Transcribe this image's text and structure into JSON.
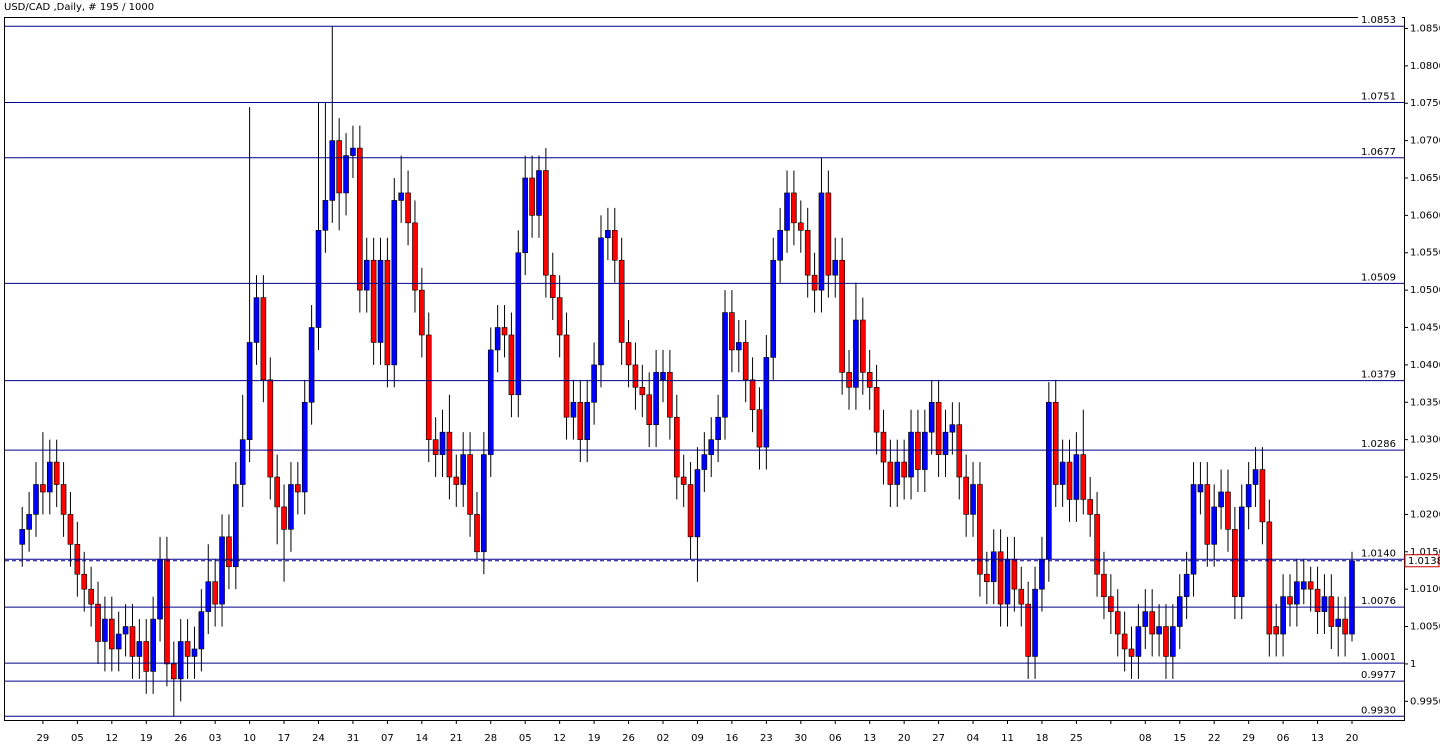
{
  "chart_data": {
    "type": "candlestick",
    "title": "USD/CAD ,Daily, # 195 / 1000",
    "up_color": "#0000ff",
    "down_color": "#ff0000",
    "level_color": "#00008b",
    "ylim": [
      0.9925,
      1.0864
    ],
    "yticks": [
      {
        "value": 0.995,
        "label": "0.9950"
      },
      1.0,
      {
        "value": 1.005,
        "label": "1.0050"
      },
      {
        "value": 1.01,
        "label": "1.0100"
      },
      {
        "value": 1.015,
        "label": "1.0150"
      },
      {
        "value": 1.02,
        "label": "1.0200"
      },
      {
        "value": 1.025,
        "label": "1.0250"
      },
      {
        "value": 1.03,
        "label": "1.0300"
      },
      {
        "value": 1.035,
        "label": "1.0350"
      },
      {
        "value": 1.04,
        "label": "1.0400"
      },
      {
        "value": 1.045,
        "label": "1.0450"
      },
      {
        "value": 1.05,
        "label": "1.0500"
      },
      {
        "value": 1.055,
        "label": "1.0550"
      },
      {
        "value": 1.06,
        "label": "1.0600"
      },
      {
        "value": 1.065,
        "label": "1.0650"
      },
      {
        "value": 1.07,
        "label": "1.0700"
      },
      {
        "value": 1.075,
        "label": "1.0750"
      },
      {
        "value": 1.08,
        "label": "1.0800"
      },
      {
        "value": 1.085,
        "label": "1.0850"
      }
    ],
    "xticks": [
      "29",
      "05",
      "12",
      "19",
      "26",
      "03",
      "10",
      "17",
      "24",
      "31",
      "07",
      "14",
      "21",
      "28",
      "05",
      "12",
      "19",
      "26",
      "02",
      "09",
      "16",
      "23",
      "30",
      "06",
      "13",
      "20",
      "27",
      "04",
      "11",
      "18",
      "25",
      null,
      "08",
      "15",
      "22",
      "29",
      "06",
      "13",
      "20"
    ],
    "levels": [
      1.0853,
      1.0751,
      1.0677,
      1.0509,
      1.0379,
      1.0286,
      {
        "value": 1.014,
        "label": "1.0140"
      },
      1.0076,
      1.0001,
      0.9977,
      {
        "value": 0.993,
        "label": "0.9930"
      }
    ],
    "bid": 1.0138,
    "candles": [
      [
        1.016,
        1.021,
        1.013,
        1.018
      ],
      [
        1.018,
        1.023,
        1.015,
        1.02
      ],
      [
        1.02,
        1.027,
        1.017,
        1.024
      ],
      [
        1.024,
        1.031,
        1.02,
        1.023
      ],
      [
        1.023,
        1.03,
        1.02,
        1.027
      ],
      [
        1.027,
        1.03,
        1.021,
        1.024
      ],
      [
        1.024,
        1.027,
        1.017,
        1.02
      ],
      [
        1.02,
        1.023,
        1.013,
        1.016
      ],
      [
        1.016,
        1.019,
        1.009,
        1.012
      ],
      [
        1.012,
        1.015,
        1.007,
        1.01
      ],
      [
        1.01,
        1.013,
        1.005,
        1.008
      ],
      [
        1.008,
        1.011,
        1.0,
        1.003
      ],
      [
        1.003,
        1.009,
        0.999,
        1.006
      ],
      [
        1.006,
        1.009,
        0.999,
        1.002
      ],
      [
        1.002,
        1.007,
        0.999,
        1.004
      ],
      [
        1.004,
        1.008,
        1.001,
        1.005
      ],
      [
        1.005,
        1.008,
        0.998,
        1.001
      ],
      [
        1.001,
        1.006,
        0.998,
        1.003
      ],
      [
        1.003,
        1.006,
        0.996,
        0.999
      ],
      [
        0.999,
        1.009,
        0.996,
        1.006
      ],
      [
        1.006,
        1.017,
        1.003,
        1.014
      ],
      [
        1.014,
        1.017,
        0.997,
        1.0
      ],
      [
        1.0,
        1.003,
        0.993,
        0.998
      ],
      [
        0.998,
        1.006,
        0.995,
        1.003
      ],
      [
        1.003,
        1.006,
        0.998,
        1.001
      ],
      [
        1.001,
        1.005,
        0.998,
        1.002
      ],
      [
        1.002,
        1.01,
        0.999,
        1.007
      ],
      [
        1.007,
        1.016,
        1.004,
        1.011
      ],
      [
        1.011,
        1.014,
        1.005,
        1.008
      ],
      [
        1.008,
        1.02,
        1.005,
        1.017
      ],
      [
        1.017,
        1.02,
        1.01,
        1.013
      ],
      [
        1.013,
        1.027,
        1.01,
        1.024
      ],
      [
        1.024,
        1.036,
        1.021,
        1.03
      ],
      [
        1.03,
        1.0745,
        1.027,
        1.043
      ],
      [
        1.043,
        1.052,
        1.04,
        1.049
      ],
      [
        1.049,
        1.052,
        1.035,
        1.038
      ],
      [
        1.038,
        1.041,
        1.022,
        1.025
      ],
      [
        1.025,
        1.028,
        1.016,
        1.021
      ],
      [
        1.021,
        1.024,
        1.011,
        1.018
      ],
      [
        1.018,
        1.027,
        1.015,
        1.024
      ],
      [
        1.024,
        1.027,
        1.02,
        1.023
      ],
      [
        1.023,
        1.038,
        1.02,
        1.035
      ],
      [
        1.035,
        1.048,
        1.032,
        1.045
      ],
      [
        1.045,
        1.0751,
        1.042,
        1.058
      ],
      [
        1.058,
        1.0751,
        1.055,
        1.062
      ],
      [
        1.062,
        1.0853,
        1.059,
        1.07
      ],
      [
        1.07,
        1.073,
        1.058,
        1.063
      ],
      [
        1.063,
        1.071,
        1.06,
        1.068
      ],
      [
        1.068,
        1.072,
        1.065,
        1.069
      ],
      [
        1.069,
        1.072,
        1.047,
        1.05
      ],
      [
        1.05,
        1.057,
        1.047,
        1.054
      ],
      [
        1.054,
        1.057,
        1.04,
        1.043
      ],
      [
        1.043,
        1.057,
        1.04,
        1.054
      ],
      [
        1.054,
        1.057,
        1.037,
        1.04
      ],
      [
        1.04,
        1.065,
        1.037,
        1.062
      ],
      [
        1.062,
        1.068,
        1.059,
        1.063
      ],
      [
        1.063,
        1.066,
        1.056,
        1.059
      ],
      [
        1.059,
        1.062,
        1.047,
        1.05
      ],
      [
        1.05,
        1.053,
        1.041,
        1.044
      ],
      [
        1.044,
        1.047,
        1.027,
        1.03
      ],
      [
        1.03,
        1.033,
        1.025,
        1.028
      ],
      [
        1.028,
        1.034,
        1.025,
        1.031
      ],
      [
        1.031,
        1.036,
        1.022,
        1.025
      ],
      [
        1.025,
        1.028,
        1.021,
        1.024
      ],
      [
        1.024,
        1.031,
        1.021,
        1.028
      ],
      [
        1.028,
        1.031,
        1.017,
        1.02
      ],
      [
        1.02,
        1.023,
        1.014,
        1.015
      ],
      [
        1.015,
        1.031,
        1.012,
        1.028
      ],
      [
        1.028,
        1.045,
        1.025,
        1.042
      ],
      [
        1.042,
        1.048,
        1.039,
        1.045
      ],
      [
        1.045,
        1.048,
        1.041,
        1.044
      ],
      [
        1.044,
        1.047,
        1.033,
        1.036
      ],
      [
        1.036,
        1.058,
        1.033,
        1.055
      ],
      [
        1.055,
        1.068,
        1.052,
        1.065
      ],
      [
        1.065,
        1.068,
        1.057,
        1.06
      ],
      [
        1.06,
        1.068,
        1.057,
        1.066
      ],
      [
        1.066,
        1.069,
        1.049,
        1.052
      ],
      [
        1.052,
        1.055,
        1.046,
        1.049
      ],
      [
        1.049,
        1.052,
        1.041,
        1.044
      ],
      [
        1.044,
        1.047,
        1.03,
        1.033
      ],
      [
        1.033,
        1.038,
        1.03,
        1.035
      ],
      [
        1.035,
        1.038,
        1.027,
        1.03
      ],
      [
        1.03,
        1.038,
        1.027,
        1.035
      ],
      [
        1.035,
        1.043,
        1.032,
        1.04
      ],
      [
        1.04,
        1.06,
        1.037,
        1.057
      ],
      [
        1.057,
        1.061,
        1.054,
        1.058
      ],
      [
        1.058,
        1.061,
        1.051,
        1.054
      ],
      [
        1.054,
        1.057,
        1.04,
        1.043
      ],
      [
        1.043,
        1.046,
        1.037,
        1.04
      ],
      [
        1.04,
        1.043,
        1.034,
        1.037
      ],
      [
        1.037,
        1.04,
        1.033,
        1.036
      ],
      [
        1.036,
        1.039,
        1.029,
        1.032
      ],
      [
        1.032,
        1.042,
        1.029,
        1.039
      ],
      [
        1.038,
        1.042,
        1.035,
        1.039
      ],
      [
        1.039,
        1.042,
        1.03,
        1.033
      ],
      [
        1.033,
        1.036,
        1.022,
        1.025
      ],
      [
        1.025,
        1.028,
        1.021,
        1.024
      ],
      [
        1.024,
        1.027,
        1.014,
        1.017
      ],
      [
        1.017,
        1.029,
        1.011,
        1.026
      ],
      [
        1.026,
        1.031,
        1.023,
        1.028
      ],
      [
        1.028,
        1.033,
        1.025,
        1.03
      ],
      [
        1.03,
        1.036,
        1.027,
        1.033
      ],
      [
        1.033,
        1.05,
        1.03,
        1.047
      ],
      [
        1.047,
        1.05,
        1.039,
        1.042
      ],
      [
        1.042,
        1.046,
        1.039,
        1.043
      ],
      [
        1.043,
        1.046,
        1.035,
        1.038
      ],
      [
        1.038,
        1.041,
        1.031,
        1.034
      ],
      [
        1.034,
        1.037,
        1.026,
        1.029
      ],
      [
        1.029,
        1.044,
        1.026,
        1.041
      ],
      [
        1.041,
        1.057,
        1.038,
        1.054
      ],
      [
        1.054,
        1.061,
        1.051,
        1.058
      ],
      [
        1.058,
        1.066,
        1.055,
        1.063
      ],
      [
        1.063,
        1.066,
        1.056,
        1.059
      ],
      [
        1.059,
        1.062,
        1.055,
        1.058
      ],
      [
        1.058,
        1.061,
        1.049,
        1.052
      ],
      [
        1.052,
        1.055,
        1.047,
        1.05
      ],
      [
        1.05,
        1.0677,
        1.047,
        1.063
      ],
      [
        1.063,
        1.066,
        1.049,
        1.052
      ],
      [
        1.052,
        1.057,
        1.049,
        1.054
      ],
      [
        1.054,
        1.057,
        1.036,
        1.039
      ],
      [
        1.039,
        1.042,
        1.034,
        1.037
      ],
      [
        1.037,
        1.051,
        1.034,
        1.046
      ],
      [
        1.046,
        1.049,
        1.036,
        1.039
      ],
      [
        1.039,
        1.042,
        1.034,
        1.037
      ],
      [
        1.037,
        1.04,
        1.028,
        1.031
      ],
      [
        1.031,
        1.034,
        1.024,
        1.027
      ],
      [
        1.027,
        1.03,
        1.021,
        1.024
      ],
      [
        1.024,
        1.03,
        1.021,
        1.027
      ],
      [
        1.027,
        1.03,
        1.022,
        1.025
      ],
      [
        1.025,
        1.034,
        1.022,
        1.031
      ],
      [
        1.031,
        1.034,
        1.023,
        1.026
      ],
      [
        1.026,
        1.034,
        1.023,
        1.031
      ],
      [
        1.031,
        1.038,
        1.028,
        1.035
      ],
      [
        1.035,
        1.038,
        1.025,
        1.028
      ],
      [
        1.028,
        1.034,
        1.025,
        1.031
      ],
      [
        1.031,
        1.035,
        1.028,
        1.032
      ],
      [
        1.032,
        1.035,
        1.022,
        1.025
      ],
      [
        1.025,
        1.028,
        1.017,
        1.02
      ],
      [
        1.02,
        1.027,
        1.017,
        1.024
      ],
      [
        1.024,
        1.027,
        1.009,
        1.012
      ],
      [
        1.012,
        1.015,
        1.008,
        1.011
      ],
      [
        1.011,
        1.018,
        1.008,
        1.015
      ],
      [
        1.015,
        1.018,
        1.005,
        1.008
      ],
      [
        1.008,
        1.017,
        1.005,
        1.014
      ],
      [
        1.014,
        1.017,
        1.007,
        1.01
      ],
      [
        1.01,
        1.013,
        1.005,
        1.008
      ],
      [
        1.008,
        1.011,
        0.998,
        1.001
      ],
      [
        1.001,
        1.013,
        0.998,
        1.01
      ],
      [
        1.01,
        1.017,
        1.007,
        1.014
      ],
      [
        1.014,
        1.0377,
        1.011,
        1.035
      ],
      [
        1.035,
        1.038,
        1.021,
        1.024
      ],
      [
        1.024,
        1.03,
        1.021,
        1.027
      ],
      [
        1.027,
        1.03,
        1.019,
        1.022
      ],
      [
        1.022,
        1.031,
        1.019,
        1.028
      ],
      [
        1.028,
        1.034,
        1.02,
        1.022
      ],
      [
        1.022,
        1.025,
        1.017,
        1.02
      ],
      [
        1.02,
        1.023,
        1.009,
        1.012
      ],
      [
        1.012,
        1.015,
        1.006,
        1.009
      ],
      [
        1.009,
        1.012,
        1.004,
        1.007
      ],
      [
        1.007,
        1.01,
        1.001,
        1.004
      ],
      [
        1.004,
        1.007,
        0.999,
        1.002
      ],
      [
        1.002,
        1.005,
        0.998,
        1.001
      ],
      [
        1.001,
        1.008,
        0.998,
        1.005
      ],
      [
        1.005,
        1.01,
        1.002,
        1.007
      ],
      [
        1.007,
        1.01,
        1.001,
        1.004
      ],
      [
        1.004,
        1.008,
        1.001,
        1.005
      ],
      [
        1.005,
        1.008,
        0.998,
        1.001
      ],
      [
        1.001,
        1.008,
        0.998,
        1.005
      ],
      [
        1.005,
        1.012,
        1.002,
        1.009
      ],
      [
        1.009,
        1.015,
        1.006,
        1.012
      ],
      [
        1.012,
        1.027,
        1.009,
        1.024
      ],
      [
        1.023,
        1.027,
        1.02,
        1.024
      ],
      [
        1.024,
        1.027,
        1.013,
        1.016
      ],
      [
        1.016,
        1.024,
        1.013,
        1.021
      ],
      [
        1.021,
        1.026,
        1.018,
        1.023
      ],
      [
        1.023,
        1.026,
        1.015,
        1.018
      ],
      [
        1.018,
        1.021,
        1.006,
        1.009
      ],
      [
        1.009,
        1.024,
        1.006,
        1.021
      ],
      [
        1.021,
        1.027,
        1.018,
        1.024
      ],
      [
        1.024,
        1.029,
        1.021,
        1.026
      ],
      [
        1.026,
        1.029,
        1.016,
        1.019
      ],
      [
        1.019,
        1.022,
        1.001,
        1.004
      ],
      [
        1.005,
        1.008,
        1.001,
        1.004
      ],
      [
        1.004,
        1.012,
        1.001,
        1.009
      ],
      [
        1.009,
        1.012,
        1.005,
        1.008
      ],
      [
        1.008,
        1.014,
        1.005,
        1.011
      ],
      [
        1.01,
        1.014,
        1.008,
        1.011
      ],
      [
        1.011,
        1.013,
        1.007,
        1.01
      ],
      [
        1.01,
        1.013,
        1.004,
        1.007
      ],
      [
        1.007,
        1.012,
        1.004,
        1.009
      ],
      [
        1.009,
        1.012,
        1.002,
        1.005
      ],
      [
        1.005,
        1.009,
        1.001,
        1.006
      ],
      [
        1.006,
        1.009,
        1.001,
        1.004
      ],
      [
        1.004,
        1.015,
        1.003,
        1.0138
      ]
    ]
  }
}
